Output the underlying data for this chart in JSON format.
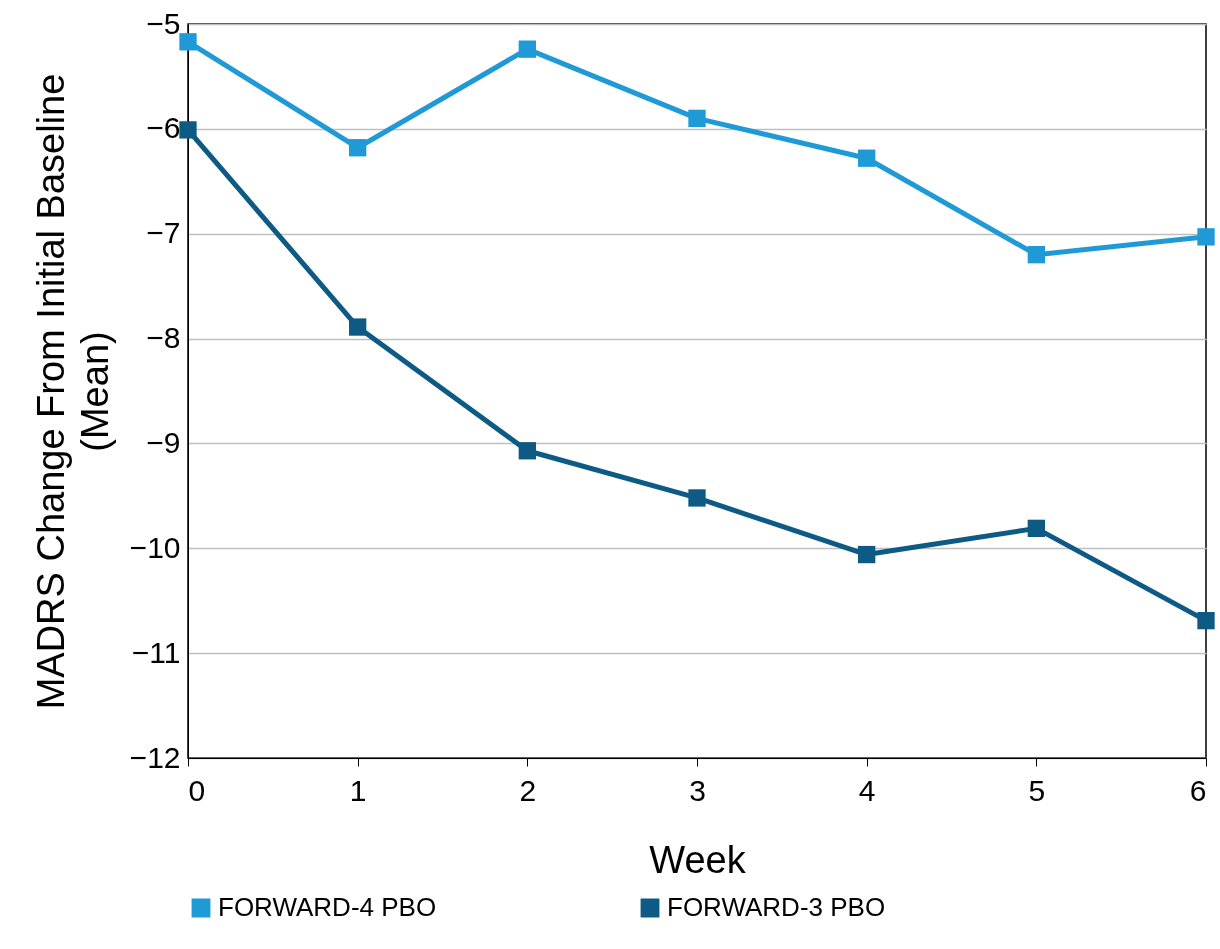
{
  "chart_data": {
    "type": "line",
    "xlabel": "Week",
    "ylabel": "MADRS Change From Initial Baseline\n(Mean)",
    "x": [
      0,
      1,
      2,
      3,
      4,
      5,
      6
    ],
    "series": [
      {
        "name": "FORWARD-4 PBO",
        "color": "#1f9ad6",
        "values": [
          -5.17,
          -6.18,
          -5.24,
          -5.9,
          -6.28,
          -7.2,
          -7.03
        ]
      },
      {
        "name": "FORWARD-3 PBO",
        "color": "#0d5b85",
        "values": [
          -6.01,
          -7.89,
          -9.07,
          -9.52,
          -10.06,
          -9.81,
          -10.69
        ]
      }
    ],
    "xlim": [
      0,
      6
    ],
    "xticks": [
      0,
      1,
      2,
      3,
      4,
      5,
      6
    ],
    "ylim": [
      -12,
      -5
    ],
    "yticks": [
      -12,
      -11,
      -10,
      -9,
      -8,
      -7,
      -6,
      -5
    ],
    "grid": "y",
    "legend": "bottom",
    "marker": "square",
    "line_style": "solid"
  }
}
